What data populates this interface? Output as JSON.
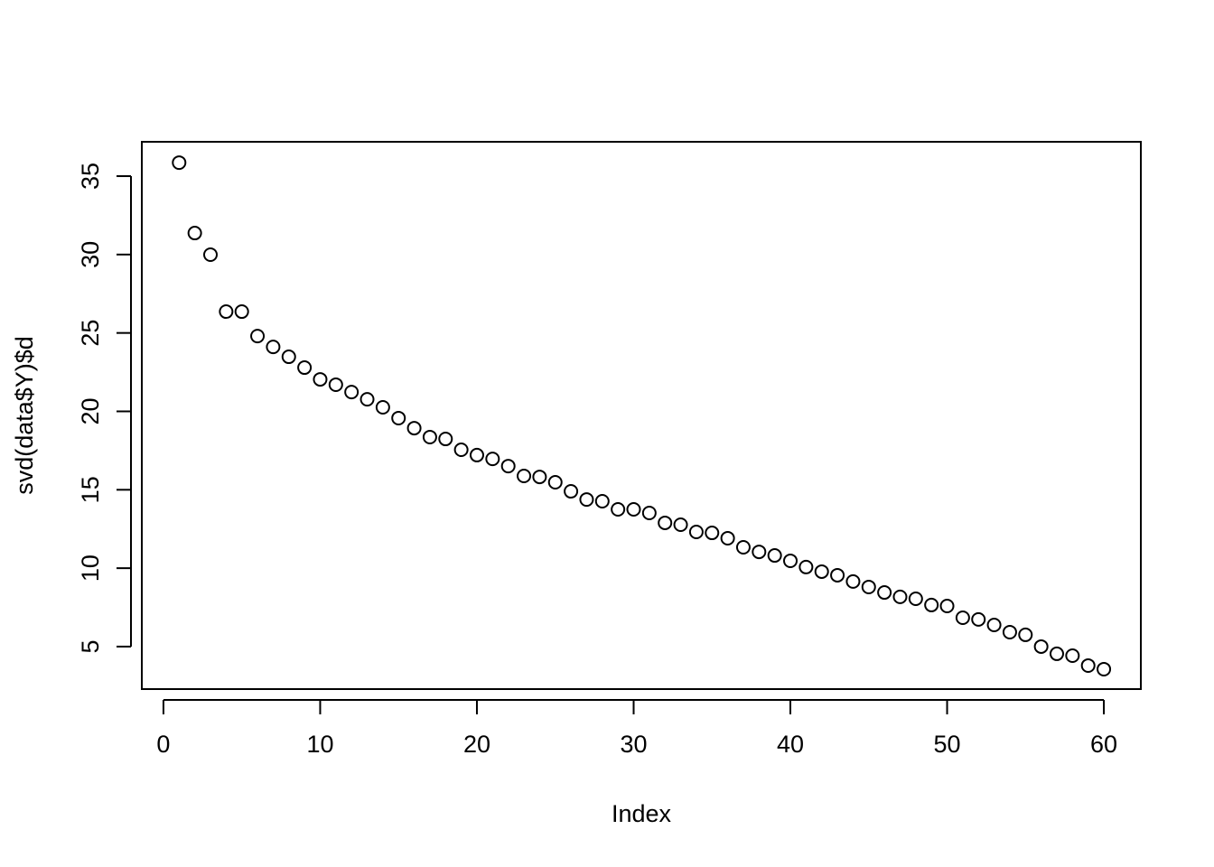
{
  "chart_data": {
    "type": "scatter",
    "xlabel": "Index",
    "ylabel": "svd(data$Y)$d",
    "x": [
      1,
      2,
      3,
      4,
      5,
      6,
      7,
      8,
      9,
      10,
      11,
      12,
      13,
      14,
      15,
      16,
      17,
      18,
      19,
      20,
      21,
      22,
      23,
      24,
      25,
      26,
      27,
      28,
      29,
      30,
      31,
      32,
      33,
      34,
      35,
      36,
      37,
      38,
      39,
      40,
      41,
      42,
      43,
      44,
      45,
      46,
      47,
      48,
      49,
      50,
      51,
      52,
      53,
      54,
      55,
      56,
      57,
      58,
      59,
      60
    ],
    "series": [
      {
        "color": "#000000",
        "values": [
          35.86,
          31.37,
          29.99,
          26.36,
          26.36,
          24.8,
          24.11,
          23.48,
          22.79,
          22.04,
          21.7,
          21.23,
          20.77,
          20.26,
          19.57,
          18.93,
          18.36,
          18.24,
          17.55,
          17.21,
          16.97,
          16.51,
          15.88,
          15.82,
          15.48,
          14.9,
          14.38,
          14.27,
          13.75,
          13.75,
          13.52,
          12.89,
          12.77,
          12.31,
          12.25,
          11.91,
          11.33,
          11.04,
          10.81,
          10.47,
          10.07,
          9.78,
          9.55,
          9.15,
          8.8,
          8.45,
          8.17,
          8.05,
          7.65,
          7.59,
          6.84,
          6.73,
          6.38,
          5.92,
          5.75,
          5.0,
          4.54,
          4.42,
          3.79,
          3.56
        ]
      }
    ],
    "xlim": [
      -1.38,
      62.36
    ],
    "ylim": [
      2.29,
      37.19
    ],
    "xticks": [
      0,
      10,
      20,
      30,
      40,
      50,
      60
    ],
    "yticks": [
      5,
      10,
      15,
      20,
      25,
      30,
      35
    ]
  }
}
